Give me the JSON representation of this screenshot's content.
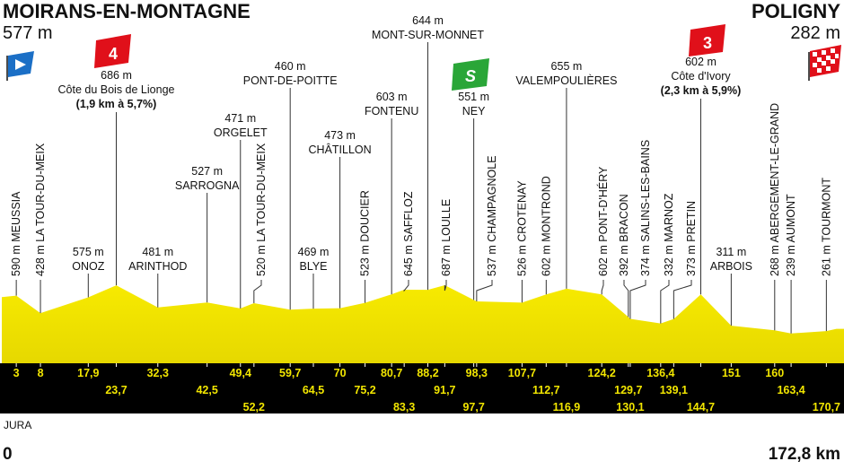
{
  "start": {
    "name": "MOIRANS-EN-MONTAGNE",
    "altitude": "577 m",
    "km": "0"
  },
  "finish": {
    "name": "POLIGNY",
    "altitude": "282 m",
    "km": "172,8 km"
  },
  "region": "JURA",
  "flags": {
    "climb_4": "4",
    "sprint": "S",
    "climb_3": "3"
  },
  "waypoints": [
    {
      "km": "3",
      "altitude": "590 m",
      "name": "MEUSSIA"
    },
    {
      "km": "8",
      "altitude": "428 m",
      "name": "LA TOUR-DU-MEIX"
    },
    {
      "km": "17,9",
      "altitude": "575 m",
      "name": "ONOZ"
    },
    {
      "km": "23,7",
      "altitude": "686 m",
      "name": "Côte du Bois de Lionge",
      "detail": "(1,9 km à 5,7%)"
    },
    {
      "km": "32,3",
      "altitude": "481 m",
      "name": "ARINTHOD"
    },
    {
      "km": "42,5",
      "altitude": "527 m",
      "name": "SARROGNA"
    },
    {
      "km": "49,4",
      "altitude": "471 m",
      "name": "ORGELET"
    },
    {
      "km": "52,2",
      "altitude": "520 m",
      "name": "LA TOUR-DU-MEIX"
    },
    {
      "km": "59,7",
      "altitude": "460 m",
      "name": "PONT-DE-POITTE"
    },
    {
      "km": "64,5",
      "altitude": "469 m",
      "name": "BLYE"
    },
    {
      "km": "70",
      "altitude": "473 m",
      "name": "CHÂTILLON"
    },
    {
      "km": "75,2",
      "altitude": "523 m",
      "name": "DOUCIER"
    },
    {
      "km": "80,7",
      "altitude": "603 m",
      "name": "FONTENU"
    },
    {
      "km": "83,3",
      "altitude": "645 m",
      "name": "SAFFLOZ"
    },
    {
      "km": "88,2",
      "altitude": "644 m",
      "name": "MONT-SUR-MONNET"
    },
    {
      "km": "91,7",
      "altitude": "687 m",
      "name": "LOULLE"
    },
    {
      "km": "97,7",
      "altitude": "551 m",
      "name": "NEY"
    },
    {
      "km": "98,3",
      "altitude": "537 m",
      "name": "CHAMPAGNOLE"
    },
    {
      "km": "107,7",
      "altitude": "526 m",
      "name": "CROTENAY"
    },
    {
      "km": "112,7",
      "altitude": "602 m",
      "name": "MONTROND"
    },
    {
      "km": "116,9",
      "altitude": "655 m",
      "name": "VALEMPOULIÈRES"
    },
    {
      "km": "124,2",
      "altitude": "602 m",
      "name": "PONT-D'HÉRY"
    },
    {
      "km": "129,7",
      "altitude": "392 m",
      "name": "BRACON"
    },
    {
      "km": "130,1",
      "altitude": "374 m",
      "name": "SALINS-LES-BAINS"
    },
    {
      "km": "136,4",
      "altitude": "332 m",
      "name": "MARNOZ"
    },
    {
      "km": "139,1",
      "altitude": "373 m",
      "name": "PRETIN"
    },
    {
      "km": "144,7",
      "altitude": "602 m",
      "name": "Côte d'Ivory",
      "detail": "(2,3 km à 5,9%)"
    },
    {
      "km": "151",
      "altitude": "311 m",
      "name": "ARBOIS"
    },
    {
      "km": "160",
      "altitude": "268 m",
      "name": "ABERGEMENT-LE-GRAND"
    },
    {
      "km": "163,4",
      "altitude": "239 m",
      "name": "AUMONT"
    },
    {
      "km": "170,7",
      "altitude": "261 m",
      "name": "TOURMONT"
    }
  ]
}
